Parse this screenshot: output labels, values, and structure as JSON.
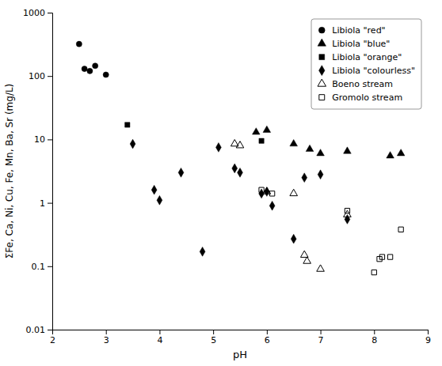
{
  "chart_data": {
    "type": "scatter",
    "xlabel": "pH",
    "ylabel": "ΣFe, Ca, Ni, Cu, Fe, Mn, Ba, Sr (mg/L)",
    "xlim": [
      2,
      9
    ],
    "ylim": [
      0.01,
      1000
    ],
    "xticks": [
      2,
      3,
      4,
      5,
      6,
      7,
      8,
      9
    ],
    "yticks": [
      0.01,
      0.1,
      1,
      10,
      100,
      1000
    ],
    "log": "y",
    "grid": false,
    "legend": "upper right",
    "series": [
      {
        "name": "Libiola \"red\"",
        "color": "black",
        "marker": "circle",
        "x": [
          2.5,
          2.6,
          2.7,
          2.8,
          3.0
        ],
        "values": [
          320,
          130,
          120,
          145,
          105
        ]
      },
      {
        "name": "Libiola \"blue\"",
        "color": "black",
        "marker": "triangle",
        "x": [
          5.8,
          6.0,
          6.5,
          6.8,
          7.0,
          7.5,
          8.3,
          8.5
        ],
        "values": [
          13,
          14,
          8.5,
          7.0,
          6.0,
          6.5,
          5.5,
          6.0
        ]
      },
      {
        "name": "Libiola \"orange\"",
        "color": "black",
        "marker": "square",
        "x": [
          3.4,
          5.9
        ],
        "values": [
          17,
          9.5
        ]
      },
      {
        "name": "Libiola \"colourless\"",
        "color": "black",
        "marker": "diamond",
        "x": [
          3.5,
          3.9,
          4.0,
          4.4,
          4.8,
          5.1,
          5.4,
          5.5,
          5.9,
          6.0,
          6.1,
          6.5,
          6.7,
          7.0,
          7.5
        ],
        "values": [
          8.5,
          1.6,
          1.1,
          3.0,
          0.17,
          7.5,
          3.5,
          3.0,
          1.4,
          1.5,
          0.9,
          0.27,
          2.5,
          2.8,
          0.55
        ]
      },
      {
        "name": "Boeno stream",
        "color": "black",
        "marker": "triangle-open",
        "x": [
          5.4,
          5.5,
          6.0,
          6.5,
          6.7,
          6.75,
          7.0,
          7.5
        ],
        "values": [
          8.5,
          8.0,
          1.5,
          1.4,
          0.15,
          0.12,
          0.09,
          0.65
        ]
      },
      {
        "name": "Gromolo stream",
        "color": "black",
        "marker": "square-open",
        "x": [
          5.9,
          6.1,
          7.5,
          8.0,
          8.1,
          8.15,
          8.3,
          8.5
        ],
        "values": [
          1.6,
          1.4,
          0.75,
          0.08,
          0.13,
          0.14,
          0.14,
          0.38
        ]
      }
    ]
  }
}
